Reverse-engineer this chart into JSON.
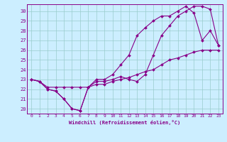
{
  "xlabel": "Windchill (Refroidissement éolien,°C)",
  "bg_color": "#cceeff",
  "line_color": "#880088",
  "grid_color": "#99cccc",
  "xlim": [
    -0.5,
    23.5
  ],
  "ylim": [
    19.5,
    30.7
  ],
  "xticks": [
    0,
    1,
    2,
    3,
    4,
    5,
    6,
    7,
    8,
    9,
    10,
    11,
    12,
    13,
    14,
    15,
    16,
    17,
    18,
    19,
    20,
    21,
    22,
    23
  ],
  "yticks": [
    20,
    21,
    22,
    23,
    24,
    25,
    26,
    27,
    28,
    29,
    30
  ],
  "series1": [
    23,
    22.8,
    22,
    21.8,
    21,
    20.0,
    19.8,
    22.2,
    22.8,
    22.8,
    23.0,
    23.3,
    23.0,
    22.8,
    23.5,
    25.5,
    27.5,
    28.5,
    29.5,
    30.0,
    30.5,
    30.5,
    30.2,
    26.5
  ],
  "series2": [
    23,
    22.8,
    22,
    21.8,
    21,
    20.0,
    19.8,
    22.2,
    23.0,
    23.0,
    23.5,
    24.5,
    25.5,
    27.5,
    28.3,
    29.0,
    29.5,
    29.5,
    30.0,
    30.5,
    29.8,
    27.0,
    28.0,
    26.5
  ],
  "series3": [
    23,
    22.8,
    22.2,
    22.2,
    22.2,
    22.2,
    22.2,
    22.2,
    22.5,
    22.5,
    22.8,
    23.0,
    23.2,
    23.5,
    23.8,
    24.0,
    24.5,
    25.0,
    25.2,
    25.5,
    25.8,
    26.0,
    26.0,
    26.0
  ]
}
